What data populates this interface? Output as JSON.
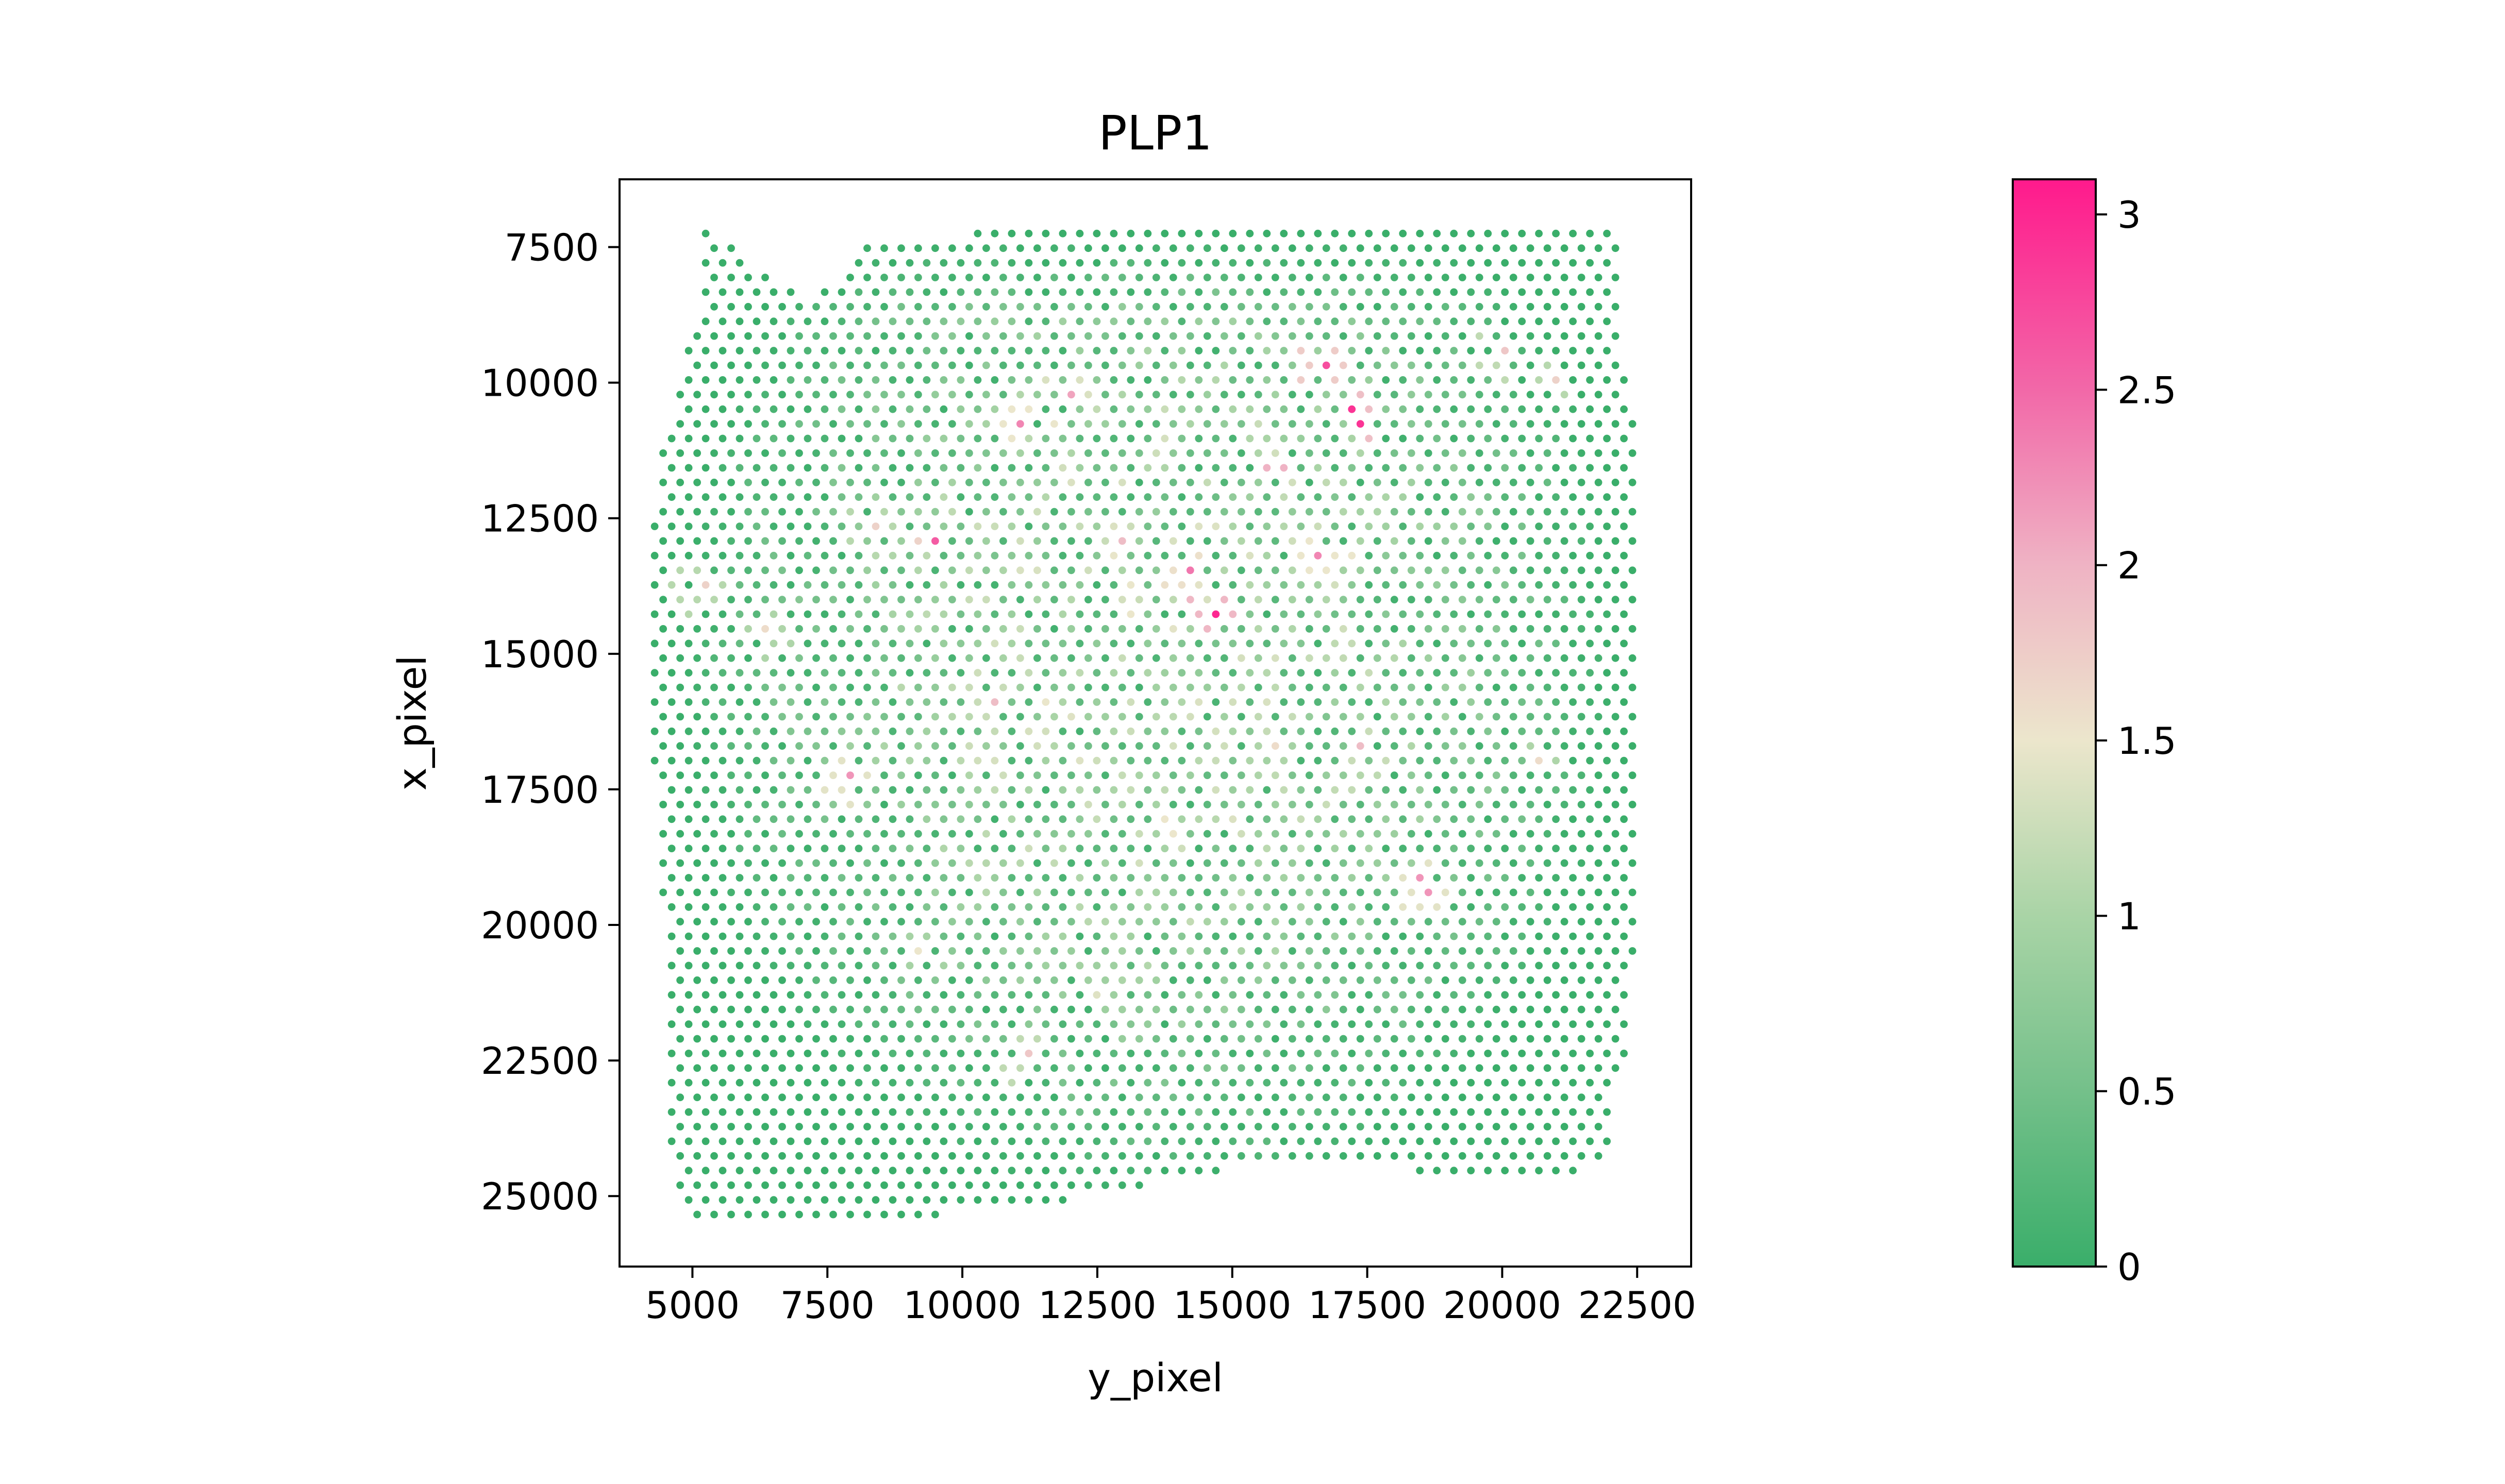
{
  "chart_data": {
    "type": "scatter",
    "title": "PLP1",
    "xlabel": "y_pixel",
    "ylabel": "x_pixel",
    "xlim": [
      3650,
      23500
    ],
    "ylim": [
      26300,
      6250
    ],
    "y_inverted": true,
    "xticks": [
      5000,
      7500,
      10000,
      12500,
      15000,
      17500,
      20000,
      22500
    ],
    "xtick_labels": [
      "5000",
      "7500",
      "10000",
      "12500",
      "15000",
      "17500",
      "20000",
      "22500"
    ],
    "yticks": [
      7500,
      10000,
      12500,
      15000,
      17500,
      20000,
      22500,
      25000
    ],
    "ytick_labels": [
      "7500",
      "10000",
      "12500",
      "15000",
      "17500",
      "20000",
      "22500",
      "25000"
    ],
    "grid": false,
    "point_grid": {
      "x_spacing": 315,
      "y_spacing": 270,
      "x_min": 4300,
      "x_max": 22450,
      "y_min": 7250,
      "y_max": 25500
    },
    "tissue_outline": [
      [
        5200,
        7250
      ],
      [
        5500,
        7250
      ],
      [
        6400,
        8000
      ],
      [
        7100,
        8400
      ],
      [
        7700,
        8100
      ],
      [
        8300,
        7300
      ],
      [
        10000,
        7250
      ],
      [
        15000,
        7250
      ],
      [
        20000,
        7250
      ],
      [
        22100,
        7250
      ],
      [
        22100,
        9000
      ],
      [
        22400,
        10000
      ],
      [
        22450,
        12500
      ],
      [
        22450,
        15000
      ],
      [
        22450,
        17500
      ],
      [
        22450,
        20000
      ],
      [
        22350,
        22000
      ],
      [
        22000,
        23500
      ],
      [
        21900,
        24400
      ],
      [
        21000,
        24700
      ],
      [
        19600,
        24700
      ],
      [
        17500,
        24450
      ],
      [
        15000,
        24500
      ],
      [
        12500,
        25000
      ],
      [
        10000,
        25300
      ],
      [
        7500,
        25500
      ],
      [
        6000,
        25500
      ],
      [
        5200,
        25500
      ],
      [
        4850,
        25200
      ],
      [
        4600,
        24300
      ],
      [
        4550,
        22500
      ],
      [
        4550,
        20000
      ],
      [
        4400,
        19600
      ],
      [
        4300,
        17500
      ],
      [
        4300,
        15000
      ],
      [
        4300,
        12500
      ],
      [
        4350,
        11500
      ],
      [
        4500,
        11000
      ],
      [
        4700,
        10500
      ],
      [
        4900,
        9500
      ],
      [
        5200,
        8500
      ],
      [
        5200,
        7250
      ]
    ],
    "expression_hotspots": [
      {
        "x": 14600,
        "y": 14200,
        "value": 3.0
      },
      {
        "x": 17300,
        "y": 10600,
        "value": 2.9
      },
      {
        "x": 16600,
        "y": 9600,
        "value": 2.7
      },
      {
        "x": 9500,
        "y": 12900,
        "value": 2.6
      },
      {
        "x": 14200,
        "y": 13600,
        "value": 2.4
      },
      {
        "x": 11200,
        "y": 10800,
        "value": 2.3
      },
      {
        "x": 16700,
        "y": 13200,
        "value": 2.3
      },
      {
        "x": 18500,
        "y": 19300,
        "value": 2.2
      },
      {
        "x": 7900,
        "y": 17300,
        "value": 2.2
      },
      {
        "x": 12000,
        "y": 10200,
        "value": 2.1
      },
      {
        "x": 15800,
        "y": 11600,
        "value": 2.0
      },
      {
        "x": 13000,
        "y": 13000,
        "value": 1.9
      },
      {
        "x": 10600,
        "y": 15800,
        "value": 1.9
      },
      {
        "x": 19900,
        "y": 9500,
        "value": 1.8
      },
      {
        "x": 21000,
        "y": 10000,
        "value": 1.7
      },
      {
        "x": 17400,
        "y": 16800,
        "value": 1.9
      },
      {
        "x": 11200,
        "y": 22500,
        "value": 1.8
      },
      {
        "x": 5100,
        "y": 13800,
        "value": 1.7
      },
      {
        "x": 6400,
        "y": 14600,
        "value": 1.6
      },
      {
        "x": 20800,
        "y": 17000,
        "value": 1.6
      },
      {
        "x": 8300,
        "y": 12700,
        "value": 1.7
      },
      {
        "x": 13800,
        "y": 18200,
        "value": 1.5
      },
      {
        "x": 9200,
        "y": 20500,
        "value": 1.5
      },
      {
        "x": 15700,
        "y": 16800,
        "value": 1.6
      },
      {
        "x": 12600,
        "y": 21200,
        "value": 1.4
      }
    ],
    "colorbar": {
      "vmin": 0,
      "vmax": 3.1,
      "ticks": [
        0,
        0.5,
        1,
        1.5,
        2,
        2.5,
        3
      ],
      "tick_labels": [
        "0",
        "0.5",
        "1",
        "1.5",
        "2",
        "2.5",
        "3"
      ],
      "colormap_stops": [
        {
          "value": 0.0,
          "color": "#3aae6a"
        },
        {
          "value": 0.5,
          "color": "#74c08a"
        },
        {
          "value": 1.0,
          "color": "#a9d4a6"
        },
        {
          "value": 1.5,
          "color": "#ece6cc"
        },
        {
          "value": 2.0,
          "color": "#efb3c4"
        },
        {
          "value": 2.5,
          "color": "#f268a8"
        },
        {
          "value": 3.1,
          "color": "#ff1a8c"
        }
      ]
    }
  }
}
